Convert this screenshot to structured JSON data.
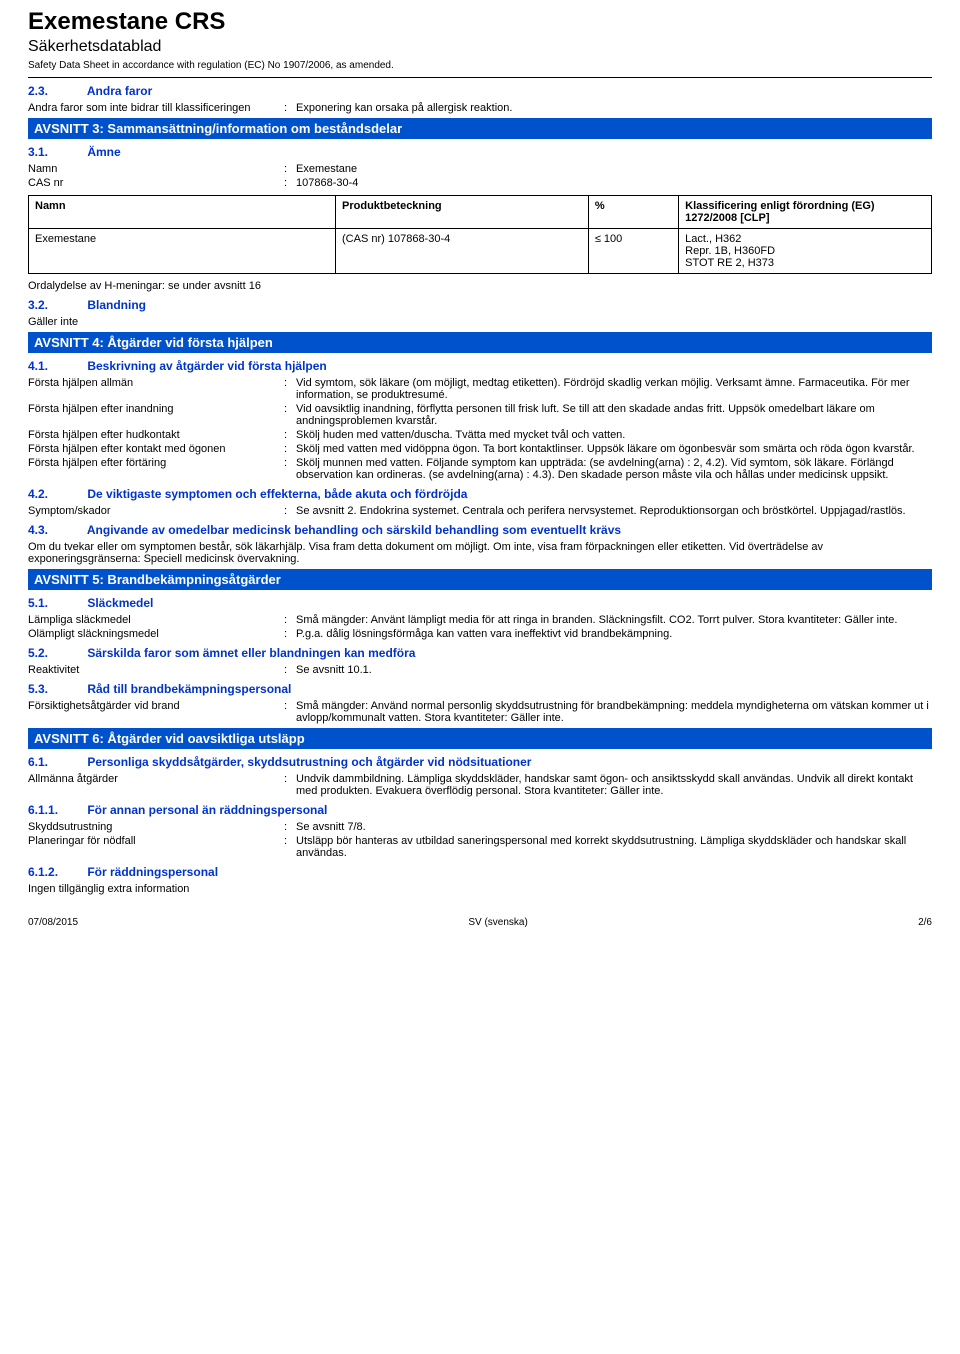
{
  "header": {
    "title": "Exemestane CRS",
    "subtitle": "Säkerhetsdatablad",
    "reg": "Safety Data Sheet in accordance with regulation (EC) No 1907/2006, as amended."
  },
  "s23": {
    "num": "2.3.",
    "title": "Andra faror",
    "row": {
      "label": "Andra faror som inte bidrar till klassificeringen",
      "val": "Exponering kan orsaka på allergisk reaktion."
    }
  },
  "sec3": {
    "title": "AVSNITT 3: Sammansättning/information om beståndsdelar",
    "s31": {
      "num": "3.1.",
      "title": "Ämne"
    },
    "name": {
      "label": "Namn",
      "val": "Exemestane"
    },
    "cas": {
      "label": "CAS nr",
      "val": "107868-30-4"
    },
    "table": {
      "cols": [
        "Namn",
        "Produktbeteckning",
        "%",
        "Klassificering enligt förordning (EG) 1272/2008 [CLP]"
      ],
      "row": [
        "Exemestane",
        "(CAS nr) 107868-30-4",
        "≤ 100",
        "Lact., H362\nRepr. 1B, H360FD\nSTOT RE 2, H373"
      ]
    },
    "ordal": "Ordalydelse av H-meningar: se under avsnitt 16",
    "s32": {
      "num": "3.2.",
      "title": "Blandning"
    },
    "s32body": "Gäller inte"
  },
  "sec4": {
    "title": "AVSNITT 4: Åtgärder vid första hjälpen",
    "s41": {
      "num": "4.1.",
      "title": "Beskrivning av åtgärder vid första hjälpen"
    },
    "rows41": [
      {
        "label": "Första hjälpen allmän",
        "val": "Vid symtom, sök läkare (om möjligt, medtag etiketten). Fördröjd skadlig verkan möjlig. Verksamt ämne. Farmaceutika. För mer information, se produktresumé."
      },
      {
        "label": "Första hjälpen efter inandning",
        "val": "Vid oavsiktlig inandning, förflytta personen till frisk luft. Se till att den skadade andas fritt. Uppsök omedelbart läkare om andningsproblemen kvarstår."
      },
      {
        "label": "Första hjälpen efter hudkontakt",
        "val": "Skölj huden med vatten/duscha. Tvätta med mycket tvål och vatten."
      },
      {
        "label": "Första hjälpen efter kontakt med ögonen",
        "val": "Skölj med vatten med vidöppna ögon. Ta bort kontaktlinser. Uppsök läkare om ögonbesvär som smärta och röda ögon kvarstår."
      },
      {
        "label": "Första hjälpen efter förtäring",
        "val": "Skölj munnen med vatten. Följande symptom kan uppträda: (se avdelning(arna) : 2, 4.2). Vid symtom, sök läkare. Förlängd observation kan ordineras. (se avdelning(arna) : 4.3). Den skadade person måste vila och hållas under medicinsk uppsikt."
      }
    ],
    "s42": {
      "num": "4.2.",
      "title": "De viktigaste symptomen och effekterna, både akuta och fördröjda"
    },
    "rows42": [
      {
        "label": "Symptom/skador",
        "val": "Se avsnitt 2. Endokrina systemet. Centrala och perifera nervsystemet. Reproduktionsorgan och bröstkörtel. Uppjagad/rastlös."
      }
    ],
    "s43": {
      "num": "4.3.",
      "title": "Angivande av omedelbar medicinsk behandling och särskild behandling som eventuellt krävs"
    },
    "s43body": "Om du tvekar eller om symptomen består, sök läkarhjälp. Visa fram detta dokument om möjligt. Om inte, visa fram förpackningen eller etiketten. Vid överträdelse av exponeringsgränserna: Speciell medicinsk övervakning."
  },
  "sec5": {
    "title": "AVSNITT 5: Brandbekämpningsåtgärder",
    "s51": {
      "num": "5.1.",
      "title": "Släckmedel"
    },
    "rows51": [
      {
        "label": "Lämpliga släckmedel",
        "val": "Små mängder: Använt lämpligt media för att ringa in branden. Släckningsfilt. CO2. Torrt pulver. Stora kvantiteter: Gäller inte."
      },
      {
        "label": "Olämpligt släckningsmedel",
        "val": "P.g.a. dålig lösningsförmåga kan vatten vara ineffektivt vid brandbekämpning."
      }
    ],
    "s52": {
      "num": "5.2.",
      "title": "Särskilda faror som ämnet eller blandningen kan medföra"
    },
    "rows52": [
      {
        "label": "Reaktivitet",
        "val": "Se avsnitt 10.1."
      }
    ],
    "s53": {
      "num": "5.3.",
      "title": "Råd till brandbekämpningspersonal"
    },
    "rows53": [
      {
        "label": "Försiktighetsåtgärder vid brand",
        "val": "Små mängder: Använd normal personlig skyddsutrustning för brandbekämpning: meddela myndigheterna om vätskan kommer ut i avlopp/kommunalt vatten. Stora kvantiteter: Gäller inte."
      }
    ]
  },
  "sec6": {
    "title": "AVSNITT 6: Åtgärder vid oavsiktliga utsläpp",
    "s61": {
      "num": "6.1.",
      "title": "Personliga skyddsåtgärder, skyddsutrustning och åtgärder vid nödsituationer"
    },
    "rows61": [
      {
        "label": "Allmänna åtgärder",
        "val": "Undvik dammbildning. Lämpliga skyddskläder, handskar samt ögon- och ansiktsskydd skall användas. Undvik all direkt kontakt med produkten. Evakuera överflödig personal. Stora kvantiteter: Gäller inte."
      }
    ],
    "s611": {
      "num": "6.1.1.",
      "title": "För annan personal än räddningspersonal"
    },
    "rows611": [
      {
        "label": "Skyddsutrustning",
        "val": "Se avsnitt 7/8."
      },
      {
        "label": "Planeringar för nödfall",
        "val": "Utsläpp bör hanteras av utbildad saneringspersonal med korrekt skyddsutrustning. Lämpliga skyddskläder och handskar skall användas."
      }
    ],
    "s612": {
      "num": "6.1.2.",
      "title": "För räddningspersonal"
    },
    "s612body": "Ingen tillgänglig extra information"
  },
  "footer": {
    "date": "07/08/2015",
    "lang": "SV (svenska)",
    "page": "2/6"
  }
}
